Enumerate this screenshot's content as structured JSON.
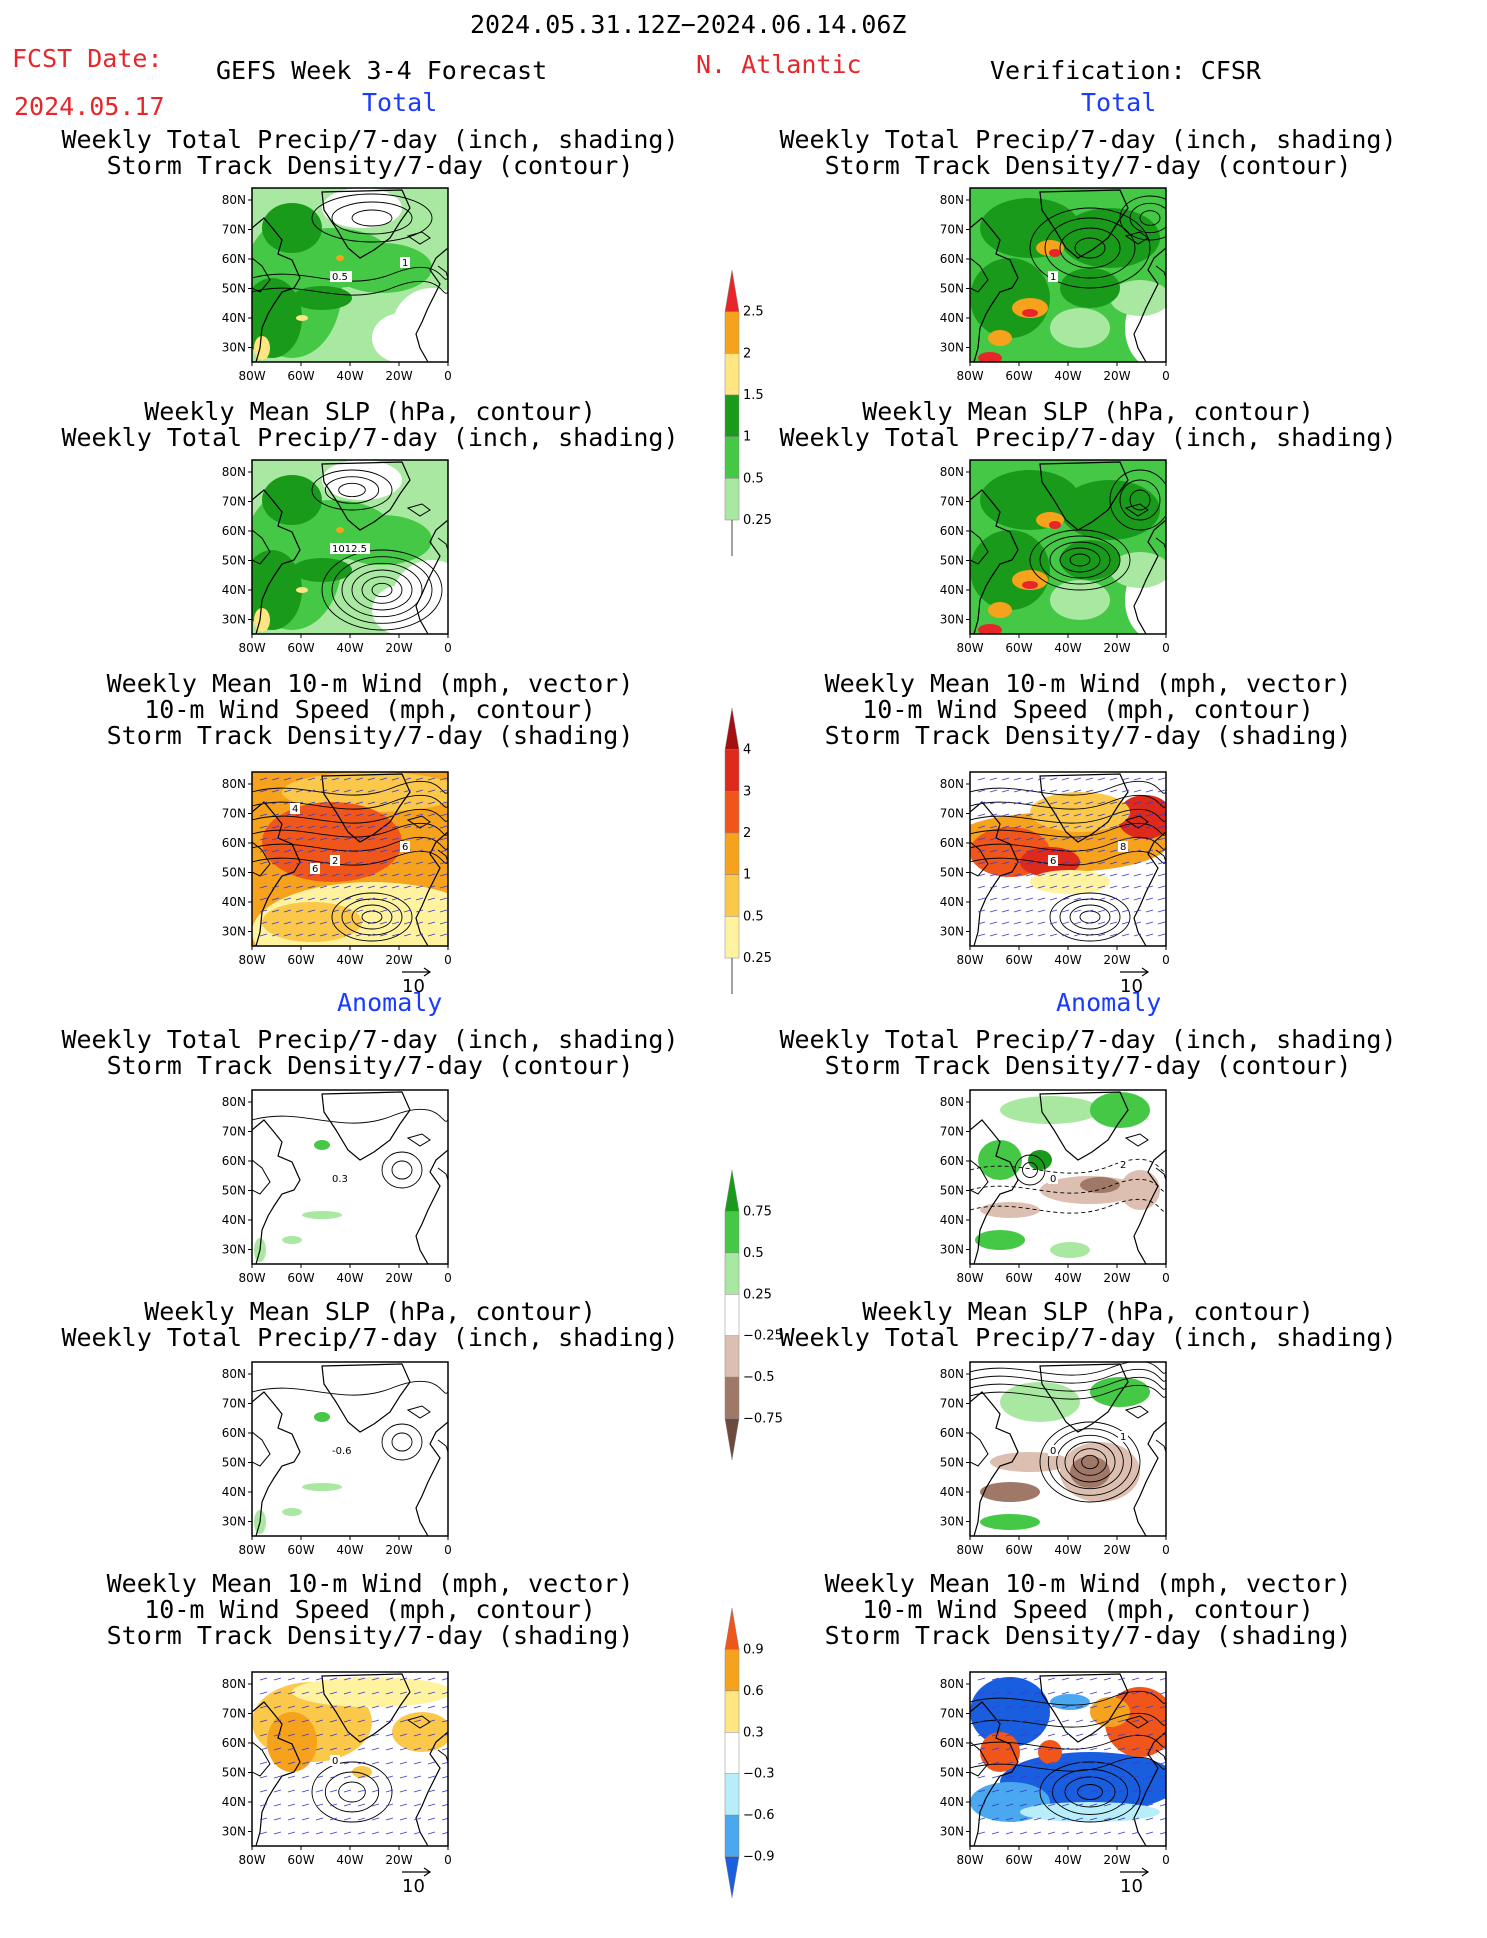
{
  "header": {
    "date_range": "2024.05.31.12Z−2024.06.14.06Z",
    "fcst_label": "FCST Date:",
    "fcst_date": "2024.05.17",
    "model": "GEFS Week 3-4 Forecast",
    "region": "N. Atlantic",
    "verification": "Verification: CFSR"
  },
  "sections": {
    "total": "Total",
    "anomaly": "Anomaly"
  },
  "titles": {
    "precip_storm": [
      "Weekly Total Precip/7-day (inch, shading)",
      "Storm Track Density/7-day (contour)"
    ],
    "slp_precip": [
      "Weekly Mean SLP (hPa, contour)",
      "Weekly Total Precip/7-day (inch, shading)"
    ],
    "wind": [
      "Weekly Mean 10-m Wind (mph, vector)",
      "10-m Wind Speed (mph, contour)",
      "Storm Track Density/7-day (shading)"
    ]
  },
  "axes": {
    "lat": [
      "80N",
      "70N",
      "60N",
      "50N",
      "40N",
      "30N"
    ],
    "lon": [
      "80W",
      "60W",
      "40W",
      "20W",
      "0"
    ]
  },
  "vector_ref": "10",
  "contour_labels": {
    "p1": [
      "0.5",
      "1"
    ],
    "p2": [
      "1012.5"
    ],
    "p3": [
      "2",
      "6",
      "4",
      "6"
    ],
    "p4": [
      "1"
    ],
    "p6": [
      "6",
      "8"
    ],
    "p7": [
      "0.3"
    ],
    "p8": [
      "-0.6"
    ],
    "p9": [
      "0"
    ],
    "p10": [
      "0",
      "2"
    ],
    "p11": [
      "0",
      "1"
    ]
  },
  "colorbars": {
    "precip": {
      "labels": [
        "2.5",
        "2",
        "1.5",
        "1",
        "0.5",
        "0.25"
      ],
      "colors": [
        "#e8262a",
        "#f7a21c",
        "#ffe680",
        "#1a9a1a",
        "#45c845",
        "#a8e8a0"
      ]
    },
    "storm": {
      "labels": [
        "4",
        "3",
        "2",
        "1",
        "0.5",
        "0.25"
      ],
      "colors": [
        "#a50f0f",
        "#dd2a1a",
        "#f0561a",
        "#f7a21c",
        "#fbc84a",
        "#fff3a0"
      ]
    },
    "precip_anom": {
      "labels": [
        "0.75",
        "0.5",
        "0.25",
        "−0.25",
        "−0.5",
        "−0.75"
      ],
      "colors": [
        "#1a9a1a",
        "#45c845",
        "#a8e8a0",
        "#ffffff",
        "#dcbfb0",
        "#a07868",
        "#6e4a3c"
      ]
    },
    "storm_anom": {
      "labels": [
        "0.9",
        "0.6",
        "0.3",
        "−0.3",
        "−0.6",
        "−0.9"
      ],
      "colors": [
        "#f0561a",
        "#f7a21c",
        "#ffe680",
        "#ffffff",
        "#b8eefa",
        "#4aa8f0",
        "#1a5ee0"
      ]
    }
  },
  "palette": {
    "land_line": "#000000",
    "vector": "#3a3acc"
  }
}
